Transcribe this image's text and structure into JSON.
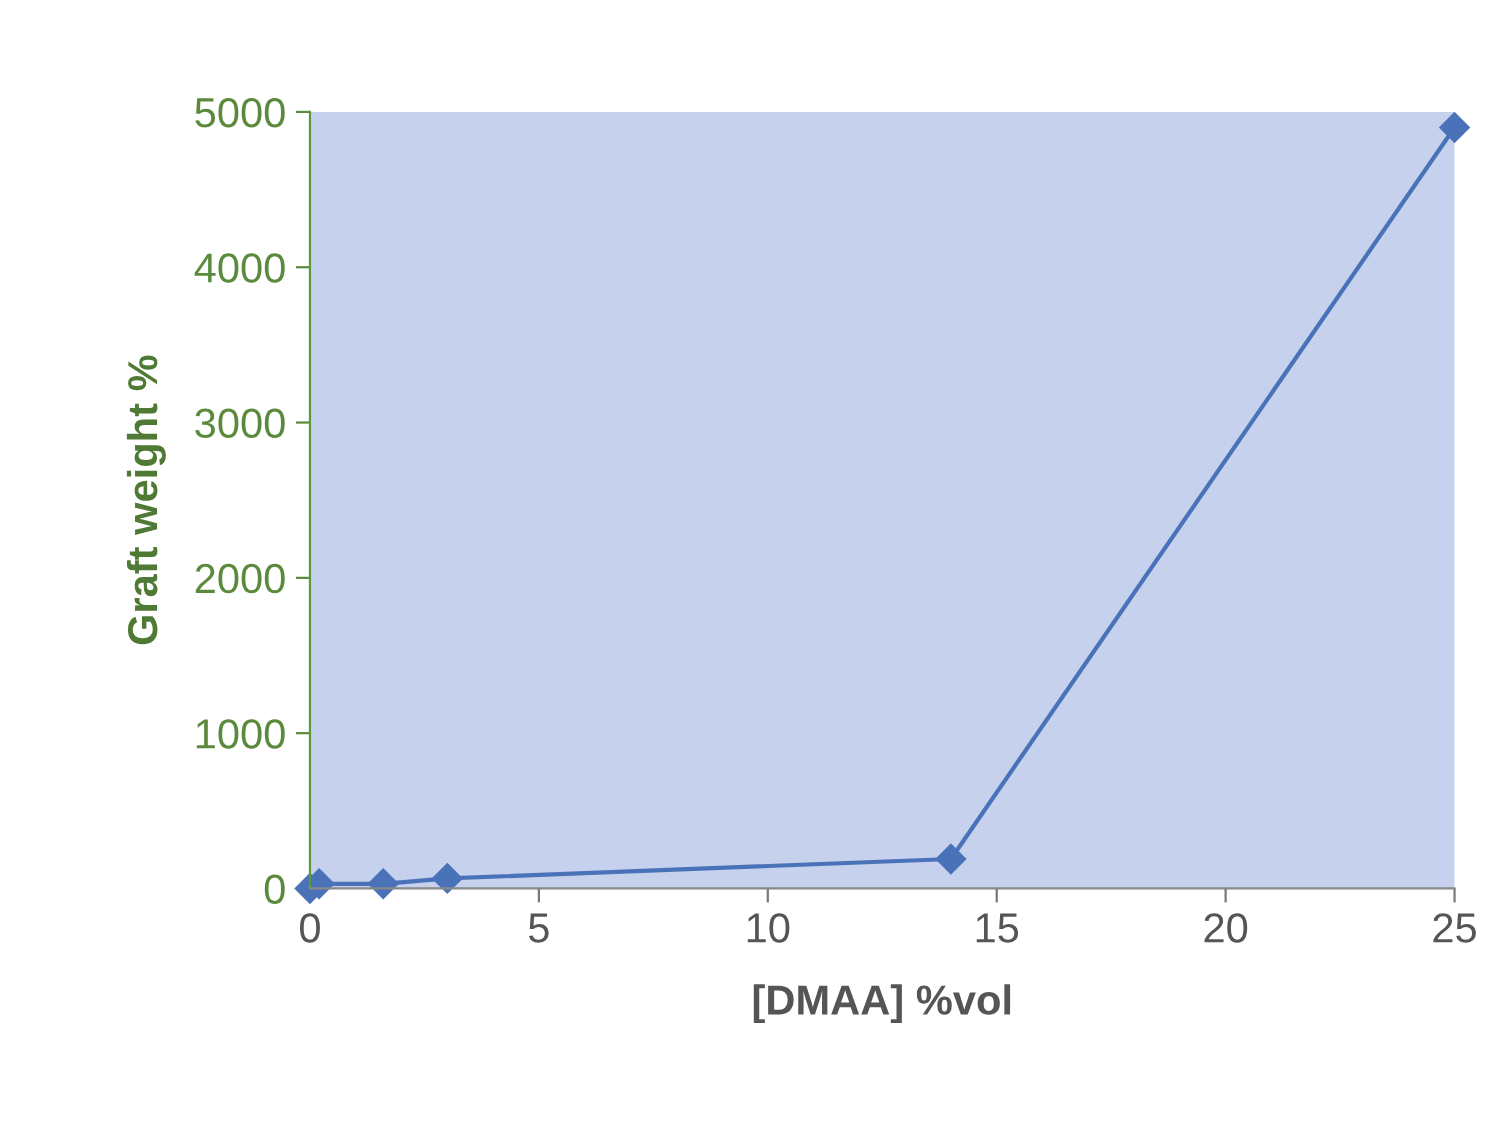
{
  "chart_data": {
    "type": "line",
    "xlabel": "[DMAA] %vol",
    "ylabel": "Graft weight %",
    "x": [
      0,
      0.2,
      1.6,
      3,
      14,
      25
    ],
    "series": [
      {
        "color": "#4a72b8",
        "values": [
          0,
          30,
          30,
          65,
          190,
          4900
        ]
      }
    ],
    "xlim": [
      0,
      25
    ],
    "ylim": [
      0,
      5000
    ],
    "xticks": [
      0,
      5,
      10,
      15,
      20,
      25
    ],
    "yticks": [
      0,
      1000,
      2000,
      3000,
      4000,
      5000
    ],
    "marker": "diamond",
    "line_style": "solid",
    "grid": false,
    "legend": false
  }
}
